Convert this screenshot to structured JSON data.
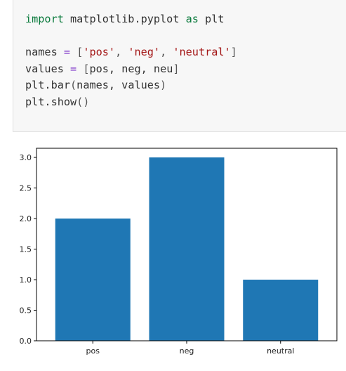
{
  "code_cell": {
    "lines": [
      [
        {
          "t": "kw",
          "s": "import"
        },
        {
          "t": "nm",
          "s": " matplotlib.pyplot "
        },
        {
          "t": "kw",
          "s": "as"
        },
        {
          "t": "nm",
          "s": " plt"
        }
      ],
      [],
      [
        {
          "t": "nm",
          "s": "names "
        },
        {
          "t": "op",
          "s": "="
        },
        {
          "t": "nm",
          "s": " "
        },
        {
          "t": "pn",
          "s": "["
        },
        {
          "t": "str",
          "s": "'pos'"
        },
        {
          "t": "pn",
          "s": ", "
        },
        {
          "t": "str",
          "s": "'neg'"
        },
        {
          "t": "pn",
          "s": ", "
        },
        {
          "t": "str",
          "s": "'neutral'"
        },
        {
          "t": "pn",
          "s": "]"
        }
      ],
      [
        {
          "t": "nm",
          "s": "values "
        },
        {
          "t": "op",
          "s": "="
        },
        {
          "t": "nm",
          "s": " "
        },
        {
          "t": "pn",
          "s": "["
        },
        {
          "t": "nm",
          "s": "pos, neg, neu"
        },
        {
          "t": "pn",
          "s": "]"
        }
      ],
      [
        {
          "t": "nm",
          "s": "plt.bar"
        },
        {
          "t": "pn",
          "s": "("
        },
        {
          "t": "nm",
          "s": "names, values"
        },
        {
          "t": "pn",
          "s": ")"
        }
      ],
      [
        {
          "t": "nm",
          "s": "plt.show"
        },
        {
          "t": "pn",
          "s": "()"
        }
      ]
    ]
  },
  "colors": {
    "bar": "#1f77b4",
    "keyword": "#0a7a3c",
    "operator": "#7a2ec7",
    "string": "#a31515"
  },
  "chart_data": {
    "type": "bar",
    "categories": [
      "pos",
      "neg",
      "neutral"
    ],
    "values": [
      2.0,
      3.0,
      1.0
    ],
    "title": "",
    "xlabel": "",
    "ylabel": "",
    "ylim": [
      0,
      3.15
    ],
    "yticks": [
      0.0,
      0.5,
      1.0,
      1.5,
      2.0,
      2.5,
      3.0
    ],
    "ytick_labels": [
      "0.0",
      "0.5",
      "1.0",
      "1.5",
      "2.0",
      "2.5",
      "3.0"
    ],
    "grid": false,
    "legend": "none"
  }
}
